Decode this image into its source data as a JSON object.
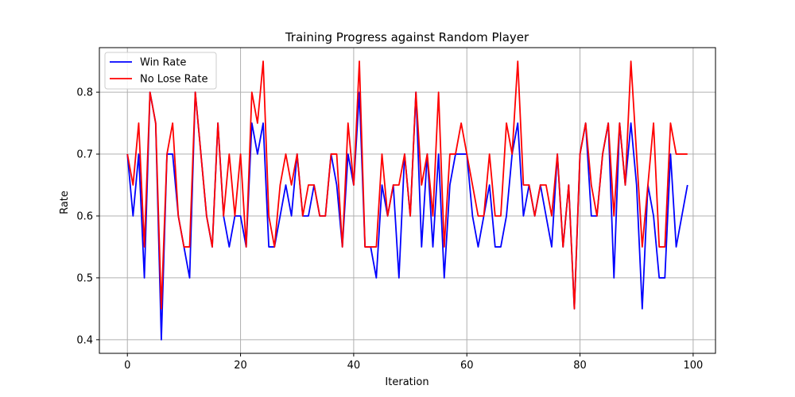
{
  "chart_data": {
    "type": "line",
    "title": "Training Progress against Random Player",
    "xlabel": "Iteration",
    "ylabel": "Rate",
    "xlim": [
      -4.95,
      103.95
    ],
    "ylim": [
      0.378,
      0.872
    ],
    "xticks": [
      0,
      20,
      40,
      60,
      80,
      100
    ],
    "yticks": [
      0.4,
      0.5,
      0.6,
      0.7,
      0.8
    ],
    "grid": true,
    "legend_position": "top-left",
    "series": [
      {
        "name": "Win Rate",
        "color": "#0000ff",
        "values": [
          0.7,
          0.6,
          0.7,
          0.5,
          0.8,
          0.75,
          0.4,
          0.7,
          0.7,
          0.6,
          0.55,
          0.5,
          0.8,
          0.7,
          0.6,
          0.55,
          0.75,
          0.6,
          0.55,
          0.6,
          0.6,
          0.55,
          0.75,
          0.7,
          0.75,
          0.55,
          0.55,
          0.6,
          0.65,
          0.6,
          0.7,
          0.6,
          0.6,
          0.65,
          0.6,
          0.6,
          0.7,
          0.65,
          0.55,
          0.7,
          0.65,
          0.8,
          0.55,
          0.55,
          0.5,
          0.65,
          0.6,
          0.65,
          0.5,
          0.7,
          0.6,
          0.8,
          0.55,
          0.7,
          0.55,
          0.7,
          0.5,
          0.65,
          0.7,
          0.7,
          0.7,
          0.6,
          0.55,
          0.6,
          0.65,
          0.55,
          0.55,
          0.6,
          0.7,
          0.75,
          0.6,
          0.65,
          0.6,
          0.65,
          0.6,
          0.55,
          0.7,
          0.55,
          0.65,
          0.45,
          0.7,
          0.75,
          0.6,
          0.6,
          0.7,
          0.75,
          0.5,
          0.75,
          0.65,
          0.75,
          0.65,
          0.45,
          0.65,
          0.6,
          0.5,
          0.5,
          0.7,
          0.55,
          0.6,
          0.65
        ]
      },
      {
        "name": "No Lose Rate",
        "color": "#ff0000",
        "values": [
          0.7,
          0.65,
          0.75,
          0.55,
          0.8,
          0.75,
          0.45,
          0.7,
          0.75,
          0.6,
          0.55,
          0.55,
          0.8,
          0.7,
          0.6,
          0.55,
          0.75,
          0.6,
          0.7,
          0.6,
          0.7,
          0.55,
          0.8,
          0.75,
          0.85,
          0.6,
          0.55,
          0.65,
          0.7,
          0.65,
          0.7,
          0.6,
          0.65,
          0.65,
          0.6,
          0.6,
          0.7,
          0.7,
          0.55,
          0.75,
          0.65,
          0.85,
          0.55,
          0.55,
          0.55,
          0.7,
          0.6,
          0.65,
          0.65,
          0.7,
          0.6,
          0.8,
          0.65,
          0.7,
          0.6,
          0.8,
          0.55,
          0.7,
          0.7,
          0.75,
          0.7,
          0.65,
          0.6,
          0.6,
          0.7,
          0.6,
          0.6,
          0.75,
          0.7,
          0.85,
          0.65,
          0.65,
          0.6,
          0.65,
          0.65,
          0.6,
          0.7,
          0.55,
          0.65,
          0.45,
          0.7,
          0.75,
          0.65,
          0.6,
          0.7,
          0.75,
          0.6,
          0.75,
          0.65,
          0.85,
          0.7,
          0.55,
          0.65,
          0.75,
          0.55,
          0.55,
          0.75,
          0.7,
          0.7,
          0.7
        ]
      }
    ]
  }
}
